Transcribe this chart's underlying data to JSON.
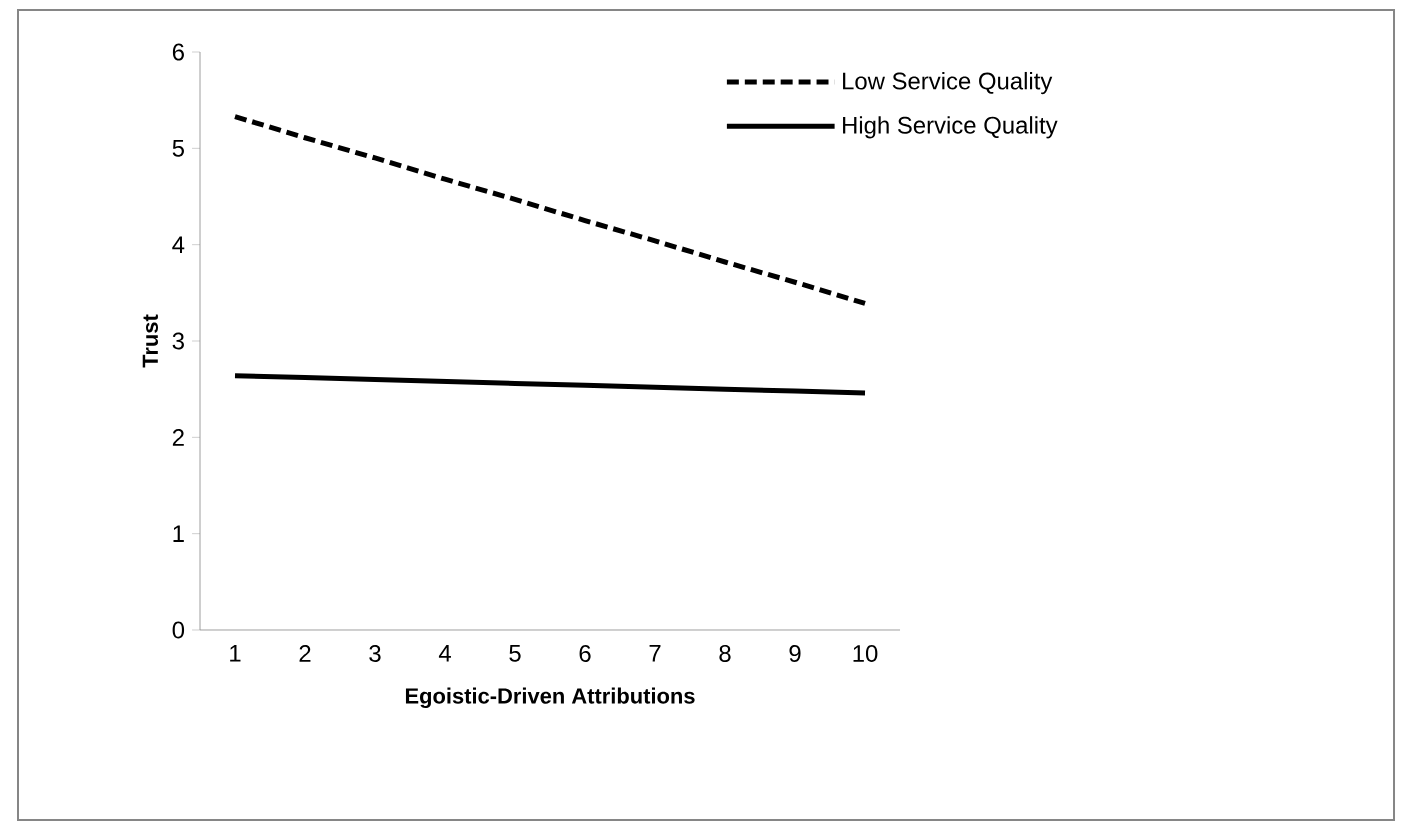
{
  "chart_data": {
    "type": "line",
    "xlabel": "Egoistic-Driven Attributions",
    "ylabel": "Trust",
    "categories": [
      "1",
      "2",
      "3",
      "4",
      "5",
      "6",
      "7",
      "8",
      "9",
      "10"
    ],
    "series": [
      {
        "name": "Low Service Quality",
        "color": "#000000",
        "line_style": "dashed",
        "values": [
          5.33,
          5.11,
          4.9,
          4.68,
          4.47,
          4.25,
          4.04,
          3.82,
          3.61,
          3.39
        ]
      },
      {
        "name": "High Service Quality",
        "color": "#000000",
        "line_style": "solid",
        "values": [
          2.64,
          2.62,
          2.6,
          2.58,
          2.56,
          2.54,
          2.52,
          2.5,
          2.48,
          2.46
        ]
      }
    ],
    "ylim": [
      0,
      6
    ],
    "yticks": [
      0,
      1,
      2,
      3,
      4,
      5,
      6
    ],
    "grid": false,
    "legend": "top right",
    "marker": "none"
  }
}
